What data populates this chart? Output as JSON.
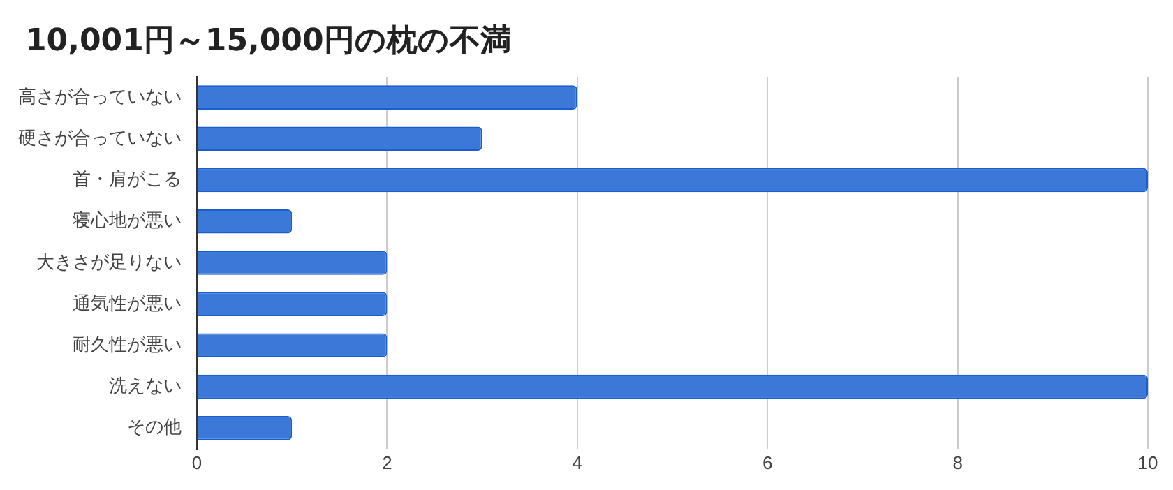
{
  "chart_data": {
    "type": "bar",
    "title": "10,001円～15,000円の枕の不満",
    "orientation": "horizontal",
    "categories": [
      "高さが合っていない",
      "硬さが合っていない",
      "首・肩がこる",
      "寝心地が悪い",
      "大きさが足りない",
      "通気性が悪い",
      "耐久性が悪い",
      "洗えない",
      "その他"
    ],
    "values": [
      4,
      3,
      10,
      1,
      2,
      2,
      2,
      10,
      1
    ],
    "color": "#3c78d8",
    "xlim": [
      0,
      10
    ],
    "xticks": [
      0,
      2,
      4,
      6,
      8,
      10
    ],
    "grid": "x",
    "legend": false
  }
}
